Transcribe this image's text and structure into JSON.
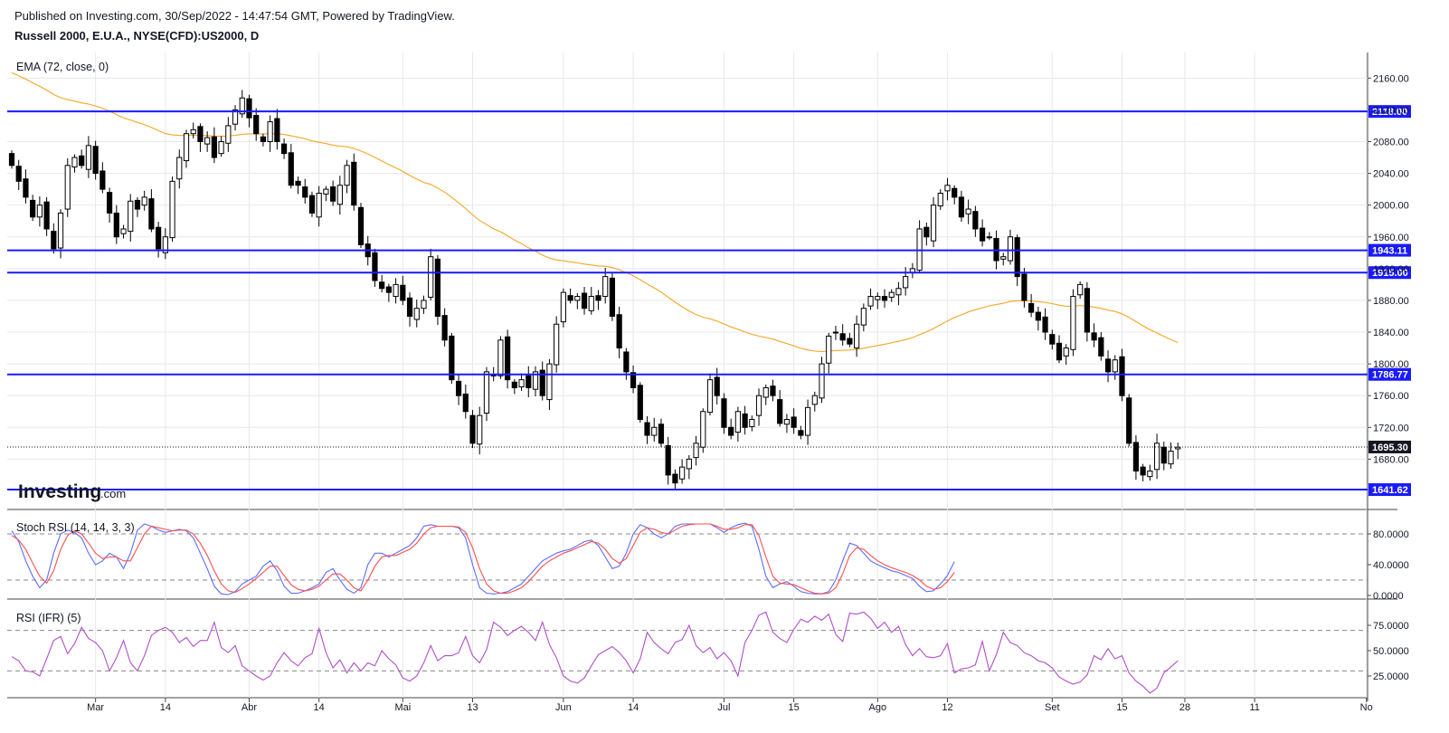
{
  "header": {
    "published": "Published on Investing.com, 30/Sep/2022 - 14:47:54 GMT, Powered by TradingView.",
    "instrument": "Russell 2000, E.U.A., NYSE(CFD):US2000, D"
  },
  "logo": {
    "brand": "Investing",
    "suffix": ".com"
  },
  "colors": {
    "level_line": "#1a1aff",
    "ema": "#f5a623",
    "stoch_k": "#5b6cff",
    "stoch_d": "#ff4d4d",
    "rsi": "#b04fc8",
    "last_price": "#131722"
  },
  "chart_data": [
    {
      "type": "candlestick",
      "title": "Russell 2000, E.U.A., NYSE(CFD):US2000, D",
      "indicator_label": "EMA (72, close, 0)",
      "ylim": [
        1620,
        2190
      ],
      "y_ticks": [
        "2160.00",
        "2120.00",
        "2080.00",
        "2040.00",
        "2000.00",
        "1960.00",
        "1920.00",
        "1880.00",
        "1840.00",
        "1800.00",
        "1760.00",
        "1720.00",
        "1680.00"
      ],
      "x_labels": [
        {
          "label": "Mar",
          "i": 12
        },
        {
          "label": "14",
          "i": 22
        },
        {
          "label": "Abr",
          "i": 34
        },
        {
          "label": "14",
          "i": 44
        },
        {
          "label": "Mai",
          "i": 56
        },
        {
          "label": "13",
          "i": 66
        },
        {
          "label": "Jun",
          "i": 79
        },
        {
          "label": "14",
          "i": 89
        },
        {
          "label": "Jul",
          "i": 102
        },
        {
          "label": "15",
          "i": 112
        },
        {
          "label": "Ago",
          "i": 124
        },
        {
          "label": "12",
          "i": 134
        },
        {
          "label": "Set",
          "i": 149
        },
        {
          "label": "15",
          "i": 159
        },
        {
          "label": "28",
          "i": 168
        },
        {
          "label": "11",
          "i": 178
        },
        {
          "label": "No",
          "i": 194
        }
      ],
      "levels": [
        {
          "value": 2118.0,
          "label": "2118.00"
        },
        {
          "value": 1943.11,
          "label": "1943.11"
        },
        {
          "value": 1915.0,
          "label": "1915.00"
        },
        {
          "value": 1786.77,
          "label": "1786.77"
        },
        {
          "value": 1641.62,
          "label": "1641.62"
        }
      ],
      "last_price": {
        "value": 1695.3,
        "label": "1695.30"
      },
      "candles_close": [
        2050,
        2030,
        2010,
        1985,
        2000,
        1970,
        1945,
        1990,
        2050,
        2060,
        2050,
        2075,
        2040,
        2020,
        1990,
        1960,
        1970,
        2005,
        1995,
        2010,
        1970,
        1945,
        1960,
        2030,
        2060,
        2090,
        2095,
        2080,
        2085,
        2060,
        2080,
        2100,
        2120,
        2135,
        2110,
        2090,
        2080,
        2105,
        2080,
        2065,
        2025,
        2025,
        2010,
        1990,
        2015,
        2020,
        2005,
        2025,
        2050,
        2000,
        1950,
        1935,
        1905,
        1895,
        1890,
        1900,
        1880,
        1860,
        1870,
        1880,
        1935,
        1860,
        1830,
        1780,
        1760,
        1740,
        1700,
        1735,
        1790,
        1785,
        1830,
        1780,
        1770,
        1780,
        1770,
        1790,
        1760,
        1800,
        1850,
        1890,
        1880,
        1885,
        1870,
        1885,
        1880,
        1910,
        1860,
        1820,
        1790,
        1770,
        1730,
        1710,
        1720,
        1700,
        1660,
        1650,
        1670,
        1680,
        1700,
        1740,
        1780,
        1760,
        1720,
        1710,
        1740,
        1720,
        1730,
        1760,
        1770,
        1760,
        1725,
        1730,
        1720,
        1710,
        1745,
        1760,
        1800,
        1835,
        1840,
        1830,
        1825,
        1850,
        1870,
        1885,
        1885,
        1880,
        1890,
        1895,
        1910,
        1920,
        1970,
        1960,
        2000,
        2015,
        2025,
        2010,
        1985,
        1995,
        1970,
        1955,
        1960,
        1930,
        1935,
        1960,
        1910,
        1880,
        1865,
        1855,
        1840,
        1825,
        1805,
        1820,
        1885,
        1900,
        1840,
        1830,
        1810,
        1790,
        1805,
        1760,
        1700,
        1665,
        1660,
        1665,
        1700,
        1675,
        1690,
        1695
      ]
    },
    {
      "type": "line",
      "title": "Stoch RSI (14, 14, 3, 3)",
      "ylim": [
        0,
        100
      ],
      "y_ticks": [
        "80.0000",
        "40.0000",
        "0.0000"
      ],
      "dashed_levels": [
        80,
        20
      ],
      "series": [
        {
          "values": [
            84,
            70,
            45,
            25,
            10,
            20,
            55,
            80,
            85,
            82,
            75,
            55,
            40,
            45,
            55,
            50,
            35,
            55,
            85,
            93,
            90,
            85,
            82,
            84,
            86,
            84,
            75,
            55,
            35,
            12,
            2,
            1,
            5,
            15,
            20,
            25,
            38,
            45,
            32,
            12,
            3,
            3,
            6,
            10,
            15,
            30,
            35,
            20,
            8,
            3,
            10,
            40,
            55,
            55,
            50,
            55,
            60,
            65,
            75,
            90,
            92,
            90,
            90,
            90,
            88,
            75,
            40,
            10,
            3,
            2,
            3,
            5,
            10,
            15,
            25,
            35,
            45,
            50,
            55,
            58,
            60,
            65,
            70,
            72,
            65,
            50,
            35,
            38,
            55,
            80,
            92,
            88,
            80,
            75,
            80,
            90,
            93,
            93,
            93,
            93,
            93,
            88,
            82,
            88,
            92,
            94,
            90,
            60,
            25,
            10,
            15,
            18,
            12,
            5,
            3,
            2,
            2,
            5,
            20,
            45,
            68,
            65,
            55,
            45,
            40,
            36,
            32,
            30,
            26,
            22,
            12,
            5,
            6,
            15,
            26,
            44
          ]
        },
        {
          "values": [
            78,
            72,
            60,
            42,
            25,
            16,
            32,
            60,
            78,
            84,
            80,
            68,
            55,
            48,
            50,
            50,
            45,
            45,
            62,
            80,
            90,
            88,
            86,
            84,
            85,
            85,
            80,
            68,
            52,
            32,
            15,
            6,
            4,
            9,
            15,
            22,
            30,
            38,
            38,
            26,
            14,
            8,
            6,
            8,
            12,
            20,
            28,
            28,
            20,
            10,
            6,
            20,
            38,
            50,
            52,
            52,
            56,
            60,
            68,
            80,
            88,
            90,
            90,
            90,
            89,
            82,
            62,
            35,
            15,
            6,
            3,
            3,
            6,
            10,
            18,
            28,
            38,
            45,
            50,
            55,
            58,
            62,
            66,
            70,
            68,
            60,
            48,
            42,
            48,
            65,
            82,
            88,
            86,
            82,
            80,
            85,
            90,
            92,
            93,
            93,
            93,
            90,
            86,
            86,
            88,
            92,
            92,
            78,
            50,
            25,
            16,
            15,
            14,
            10,
            6,
            3,
            2,
            3,
            10,
            28,
            52,
            62,
            60,
            52,
            45,
            40,
            36,
            33,
            30,
            26,
            20,
            12,
            8,
            10,
            18,
            30
          ]
        }
      ]
    },
    {
      "type": "line",
      "title": "RSI (IFR) (5)",
      "ylim": [
        5,
        100
      ],
      "y_ticks": [
        "75.0000",
        "50.0000",
        "25.0000"
      ],
      "dashed_levels": [
        70,
        30
      ],
      "series": [
        {
          "values": [
            44,
            40,
            30,
            29,
            25,
            42,
            60,
            64,
            47,
            57,
            73,
            62,
            58,
            50,
            30,
            43,
            60,
            38,
            30,
            45,
            65,
            70,
            73,
            68,
            58,
            63,
            54,
            60,
            60,
            78,
            53,
            48,
            55,
            35,
            30,
            25,
            21,
            25,
            38,
            48,
            40,
            35,
            43,
            47,
            72,
            48,
            33,
            41,
            28,
            38,
            30,
            38,
            35,
            50,
            42,
            36,
            23,
            20,
            25,
            38,
            55,
            40,
            45,
            45,
            48,
            64,
            45,
            38,
            51,
            78,
            73,
            65,
            70,
            74,
            68,
            60,
            78,
            56,
            43,
            25,
            20,
            18,
            23,
            35,
            46,
            50,
            54,
            48,
            40,
            28,
            42,
            68,
            58,
            52,
            47,
            58,
            61,
            75,
            55,
            48,
            53,
            42,
            48,
            40,
            25,
            58,
            70,
            85,
            88,
            68,
            62,
            58,
            71,
            81,
            78,
            84,
            80,
            86,
            66,
            59,
            87,
            86,
            88,
            82,
            72,
            78,
            68,
            74,
            56,
            45,
            52,
            44,
            43,
            45,
            57,
            28,
            32,
            33,
            36,
            59,
            30,
            46,
            68,
            58,
            55,
            48,
            45,
            40,
            38,
            33,
            24,
            20,
            17,
            19,
            26,
            45,
            41,
            52,
            42,
            45,
            28,
            20,
            15,
            8,
            13,
            28,
            34,
            40
          ]
        }
      ]
    }
  ]
}
